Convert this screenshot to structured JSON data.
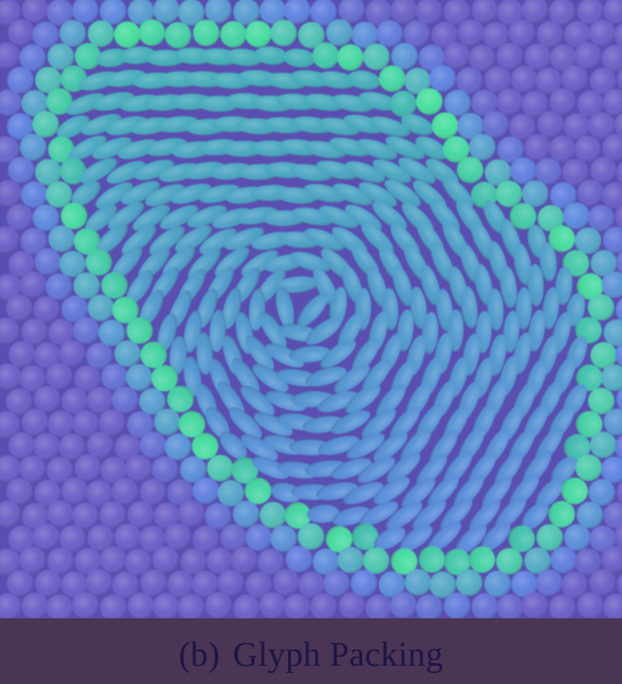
{
  "caption": {
    "label": "(b)",
    "title": "Glyph Packing"
  },
  "colors": {
    "background_field": "#5a4fb0",
    "glyph_cool": "#6a5fc6",
    "glyph_blue": "#5d83e2",
    "glyph_teal": "#3fb7b0",
    "glyph_green": "#47e09d",
    "caption_bar": "#4a3554",
    "caption_text": "#1e1446"
  }
}
